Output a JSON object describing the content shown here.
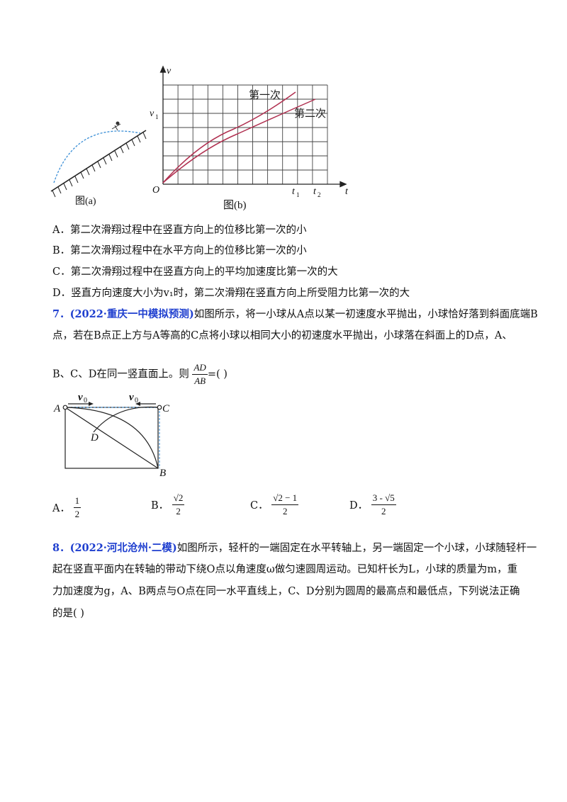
{
  "figure_b": {
    "axis_v": "v",
    "axis_t": "t",
    "origin": "O",
    "v1": "v",
    "v1_sub": "1",
    "t1": "t",
    "t1_sub": "1",
    "t2": "t",
    "t2_sub": "2",
    "curve1_label": "第一次",
    "curve2_label": "第二次",
    "caption": "图(b)"
  },
  "figure_a": {
    "caption": "图(a)"
  },
  "q6_options": [
    "A．第二次滑翔过程中在竖直方向上的位移比第一次的小",
    "B．第二次滑翔过程中在水平方向上的位移比第一次的小",
    "C．第二次滑翔过程中在竖直方向上的平均加速度比第一次的大",
    "D．竖直方向速度大小为v₁时，第二次滑翔在竖直方向上所受阻力比第一次的大"
  ],
  "q7": {
    "number": "7．",
    "source": "(2022·重庆一中模拟预测)",
    "line1": "如图所示，将一小球从A点以某一初速度水平抛出，小球恰好落到斜面底端B",
    "line2": "点，若在B点正上方与A等高的C点将小球以相同大小的初速度水平抛出，小球落在斜面上的D点，A、",
    "line3_pre": "B、C、D在同一竖直面上。则",
    "frac_num": "AD",
    "frac_den": "AB",
    "line3_post": "=(      )",
    "fig": {
      "A": "A",
      "B": "B",
      "C": "C",
      "D": "D",
      "v0": "v",
      "v0_sub": "0"
    },
    "options": {
      "A_label": "A．",
      "A_num": "1",
      "A_den": "2",
      "B_label": "B．",
      "B_num": "√2",
      "B_den": "2",
      "C_label": "C．",
      "C_num": "√2 − 1",
      "C_den": "2",
      "D_label": "D．",
      "D_num": "3 - √5",
      "D_den": "2"
    }
  },
  "q8": {
    "number": "8．",
    "source": "(2022·河北沧州·二模)",
    "line1": "如图所示，轻杆的一端固定在水平转轴上，另一端固定一个小球，小球随轻杆一",
    "line2": "起在竖直平面内在转轴的带动下绕O点以角速度ω做匀速圆周运动。已知杆长为L，小球的质量为m，重",
    "line3": "力加速度为g，A、B两点与O点在同一水平直线上，C、D分别为圆周的最高点和最低点，下列说法正确",
    "line4": "的是(      )"
  }
}
